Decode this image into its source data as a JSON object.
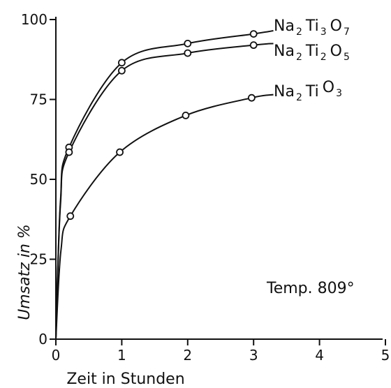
{
  "chart_data": {
    "type": "line",
    "xlabel": "Zeit in Stunden",
    "ylabel": "Umsatz in %",
    "xlim": [
      0,
      5
    ],
    "ylim": [
      0,
      100
    ],
    "xticks": [
      "0",
      "1",
      "2",
      "3",
      "4",
      "5"
    ],
    "yticks": [
      "0",
      "25",
      "50",
      "75",
      "100"
    ],
    "grid": false,
    "annotation": "Temp. 809°",
    "series": [
      {
        "name": "Na2 Ti3 O7",
        "label_main": [
          "Na",
          "Ti",
          "O"
        ],
        "label_sub": [
          "2",
          "3",
          "7"
        ],
        "points": [
          [
            0.2,
            60
          ],
          [
            1.0,
            86.5
          ],
          [
            2.0,
            92.5
          ],
          [
            3.0,
            95.5
          ]
        ],
        "curve_end": [
          3.3,
          96.5
        ]
      },
      {
        "name": "Na2 Ti2 O5",
        "label_main": [
          "Na",
          "Ti",
          "O"
        ],
        "label_sub": [
          "2",
          "2",
          "5"
        ],
        "points": [
          [
            0.2,
            58.5
          ],
          [
            1.0,
            84
          ],
          [
            2.0,
            89.5
          ],
          [
            3.0,
            92
          ]
        ],
        "curve_end": [
          3.3,
          92.5
        ]
      },
      {
        "name": "Na2 Ti O3",
        "label_main": [
          "Na",
          "Ti",
          "O"
        ],
        "label_sub": [
          "2",
          "",
          "3"
        ],
        "points": [
          [
            0.22,
            38.5
          ],
          [
            0.97,
            58.5
          ],
          [
            1.97,
            70
          ],
          [
            2.97,
            75.5
          ]
        ],
        "curve_end": [
          3.3,
          76.5
        ]
      }
    ]
  }
}
